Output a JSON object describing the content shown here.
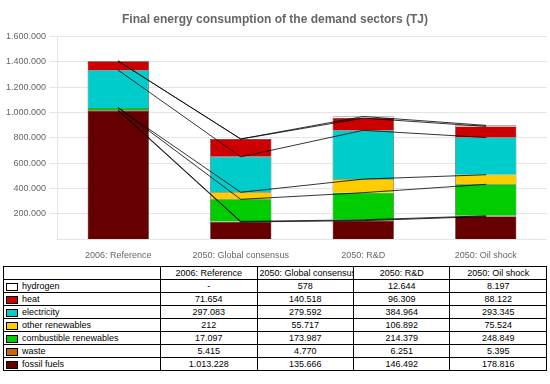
{
  "chart_data": {
    "type": "bar",
    "title": "Final energy consumption of the demand sectors (TJ)",
    "categories": [
      "2006: Reference",
      "2050: Global consensus",
      "2050: R&D",
      "2050: Oil shock"
    ],
    "stacked": true,
    "grid": true,
    "series": [
      {
        "name": "fossil fuels",
        "color": "#660000",
        "values": [
          1013228,
          135666,
          146492,
          178816
        ],
        "value_labels": [
          "1.013.228",
          "135.666",
          "146.492",
          "178.816"
        ]
      },
      {
        "name": "waste",
        "color": "#cc6600",
        "values": [
          5415,
          4770,
          6251,
          5395
        ],
        "value_labels": [
          "5.415",
          "4.770",
          "6.251",
          "5.395"
        ]
      },
      {
        "name": "combustible renewables",
        "color": "#00cc00",
        "values": [
          17097,
          173987,
          214379,
          248849
        ],
        "value_labels": [
          "17.097",
          "173.987",
          "214.379",
          "248.849"
        ]
      },
      {
        "name": "other renewables",
        "color": "#ffcc00",
        "values": [
          212,
          55717,
          106892,
          75524
        ],
        "value_labels": [
          "212",
          "55.717",
          "106.892",
          "75.524"
        ]
      },
      {
        "name": "electricity",
        "color": "#00cccc",
        "values": [
          297083,
          279592,
          384964,
          293345
        ],
        "value_labels": [
          "297.083",
          "279.592",
          "384.964",
          "293.345"
        ]
      },
      {
        "name": "heat",
        "color": "#cc0000",
        "values": [
          71654,
          140518,
          96309,
          88122
        ],
        "value_labels": [
          "71.654",
          "140.518",
          "96.309",
          "88.122"
        ]
      },
      {
        "name": "hydrogen",
        "color": "#ffffff",
        "values": [
          0,
          578,
          12644,
          8197
        ],
        "value_labels": [
          "-",
          "578",
          "12.644",
          "8.197"
        ]
      }
    ],
    "ylim": [
      0,
      1600000
    ],
    "yticks": [
      {
        "value": 200000,
        "label": "200.000"
      },
      {
        "value": 400000,
        "label": "400.000"
      },
      {
        "value": 600000,
        "label": "600.000"
      },
      {
        "value": 800000,
        "label": "800.000"
      },
      {
        "value": 1000000,
        "label": "1.000.000"
      },
      {
        "value": 1200000,
        "label": "1.200.000"
      },
      {
        "value": 1400000,
        "label": "1.400.000"
      },
      {
        "value": 1600000,
        "label": "1.600.000"
      }
    ]
  }
}
